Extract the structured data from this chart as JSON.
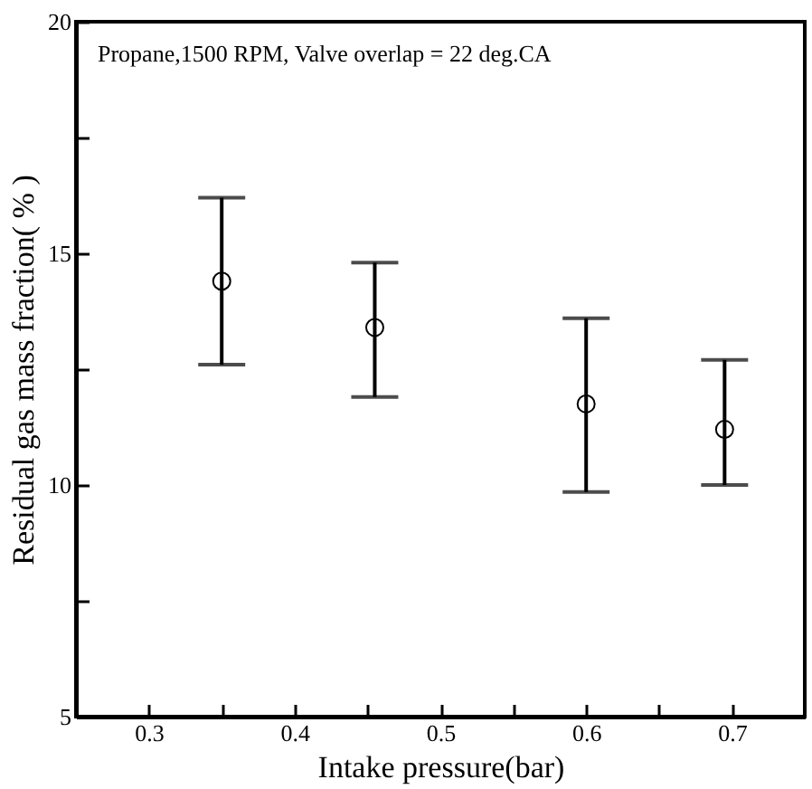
{
  "chart_data": {
    "type": "scatter",
    "x": [
      0.35,
      0.455,
      0.6,
      0.695
    ],
    "values": [
      14.4,
      13.4,
      11.75,
      11.2
    ],
    "errors": [
      [
        12.6,
        16.2
      ],
      [
        11.9,
        14.8
      ],
      [
        9.85,
        13.6
      ],
      [
        10.0,
        12.7
      ]
    ],
    "color": "#000000",
    "marker": "circle",
    "xlabel": "Intake pressure(bar)",
    "ylabel": "Residual gas mass fraction( % )",
    "annotations": [
      "Propane,1500 RPM, Valve overlap = 22 deg.CA"
    ],
    "xlim": [
      0.25,
      0.75
    ],
    "xticks": [
      0.3,
      {
        "value": 0.35,
        "label": null
      },
      0.4,
      {
        "value": 0.45,
        "label": null
      },
      0.5,
      {
        "value": 0.55,
        "label": null
      },
      0.6,
      {
        "value": 0.65,
        "label": null
      },
      0.7
    ],
    "ylim": [
      5,
      20
    ],
    "yticks": [
      5,
      {
        "value": 7.5,
        "label": null
      },
      10,
      {
        "value": 12.5,
        "label": null
      },
      15,
      {
        "value": 17.5,
        "label": null
      },
      20
    ],
    "grid": false
  }
}
